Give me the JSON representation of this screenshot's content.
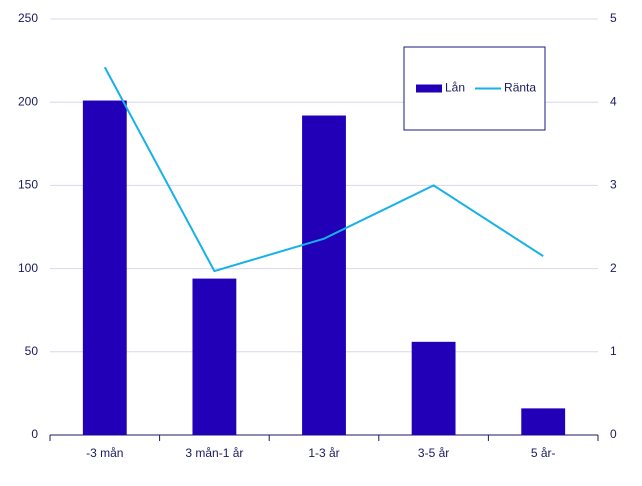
{
  "chart_data": {
    "type": "bar",
    "categories": [
      "-3 mån",
      "3 mån-1 år",
      "1-3 år",
      "3-5 år",
      "5 år-"
    ],
    "series": [
      {
        "name": "Lån",
        "type": "bar",
        "color": "#2200b8",
        "values": [
          201,
          94,
          192,
          56,
          16
        ]
      },
      {
        "name": "Ränta",
        "type": "line",
        "axis": "y2",
        "color": "#17b1e8",
        "values": [
          4.42,
          1.97,
          2.36,
          3.0,
          2.15
        ]
      }
    ],
    "ylim": [
      0,
      250
    ],
    "yticks": [
      0,
      50,
      100,
      150,
      200,
      250
    ],
    "y2lim": [
      0,
      5
    ],
    "y2ticks": [
      0,
      1,
      2,
      3,
      4,
      5
    ],
    "grid": true,
    "legend": "top-right"
  }
}
